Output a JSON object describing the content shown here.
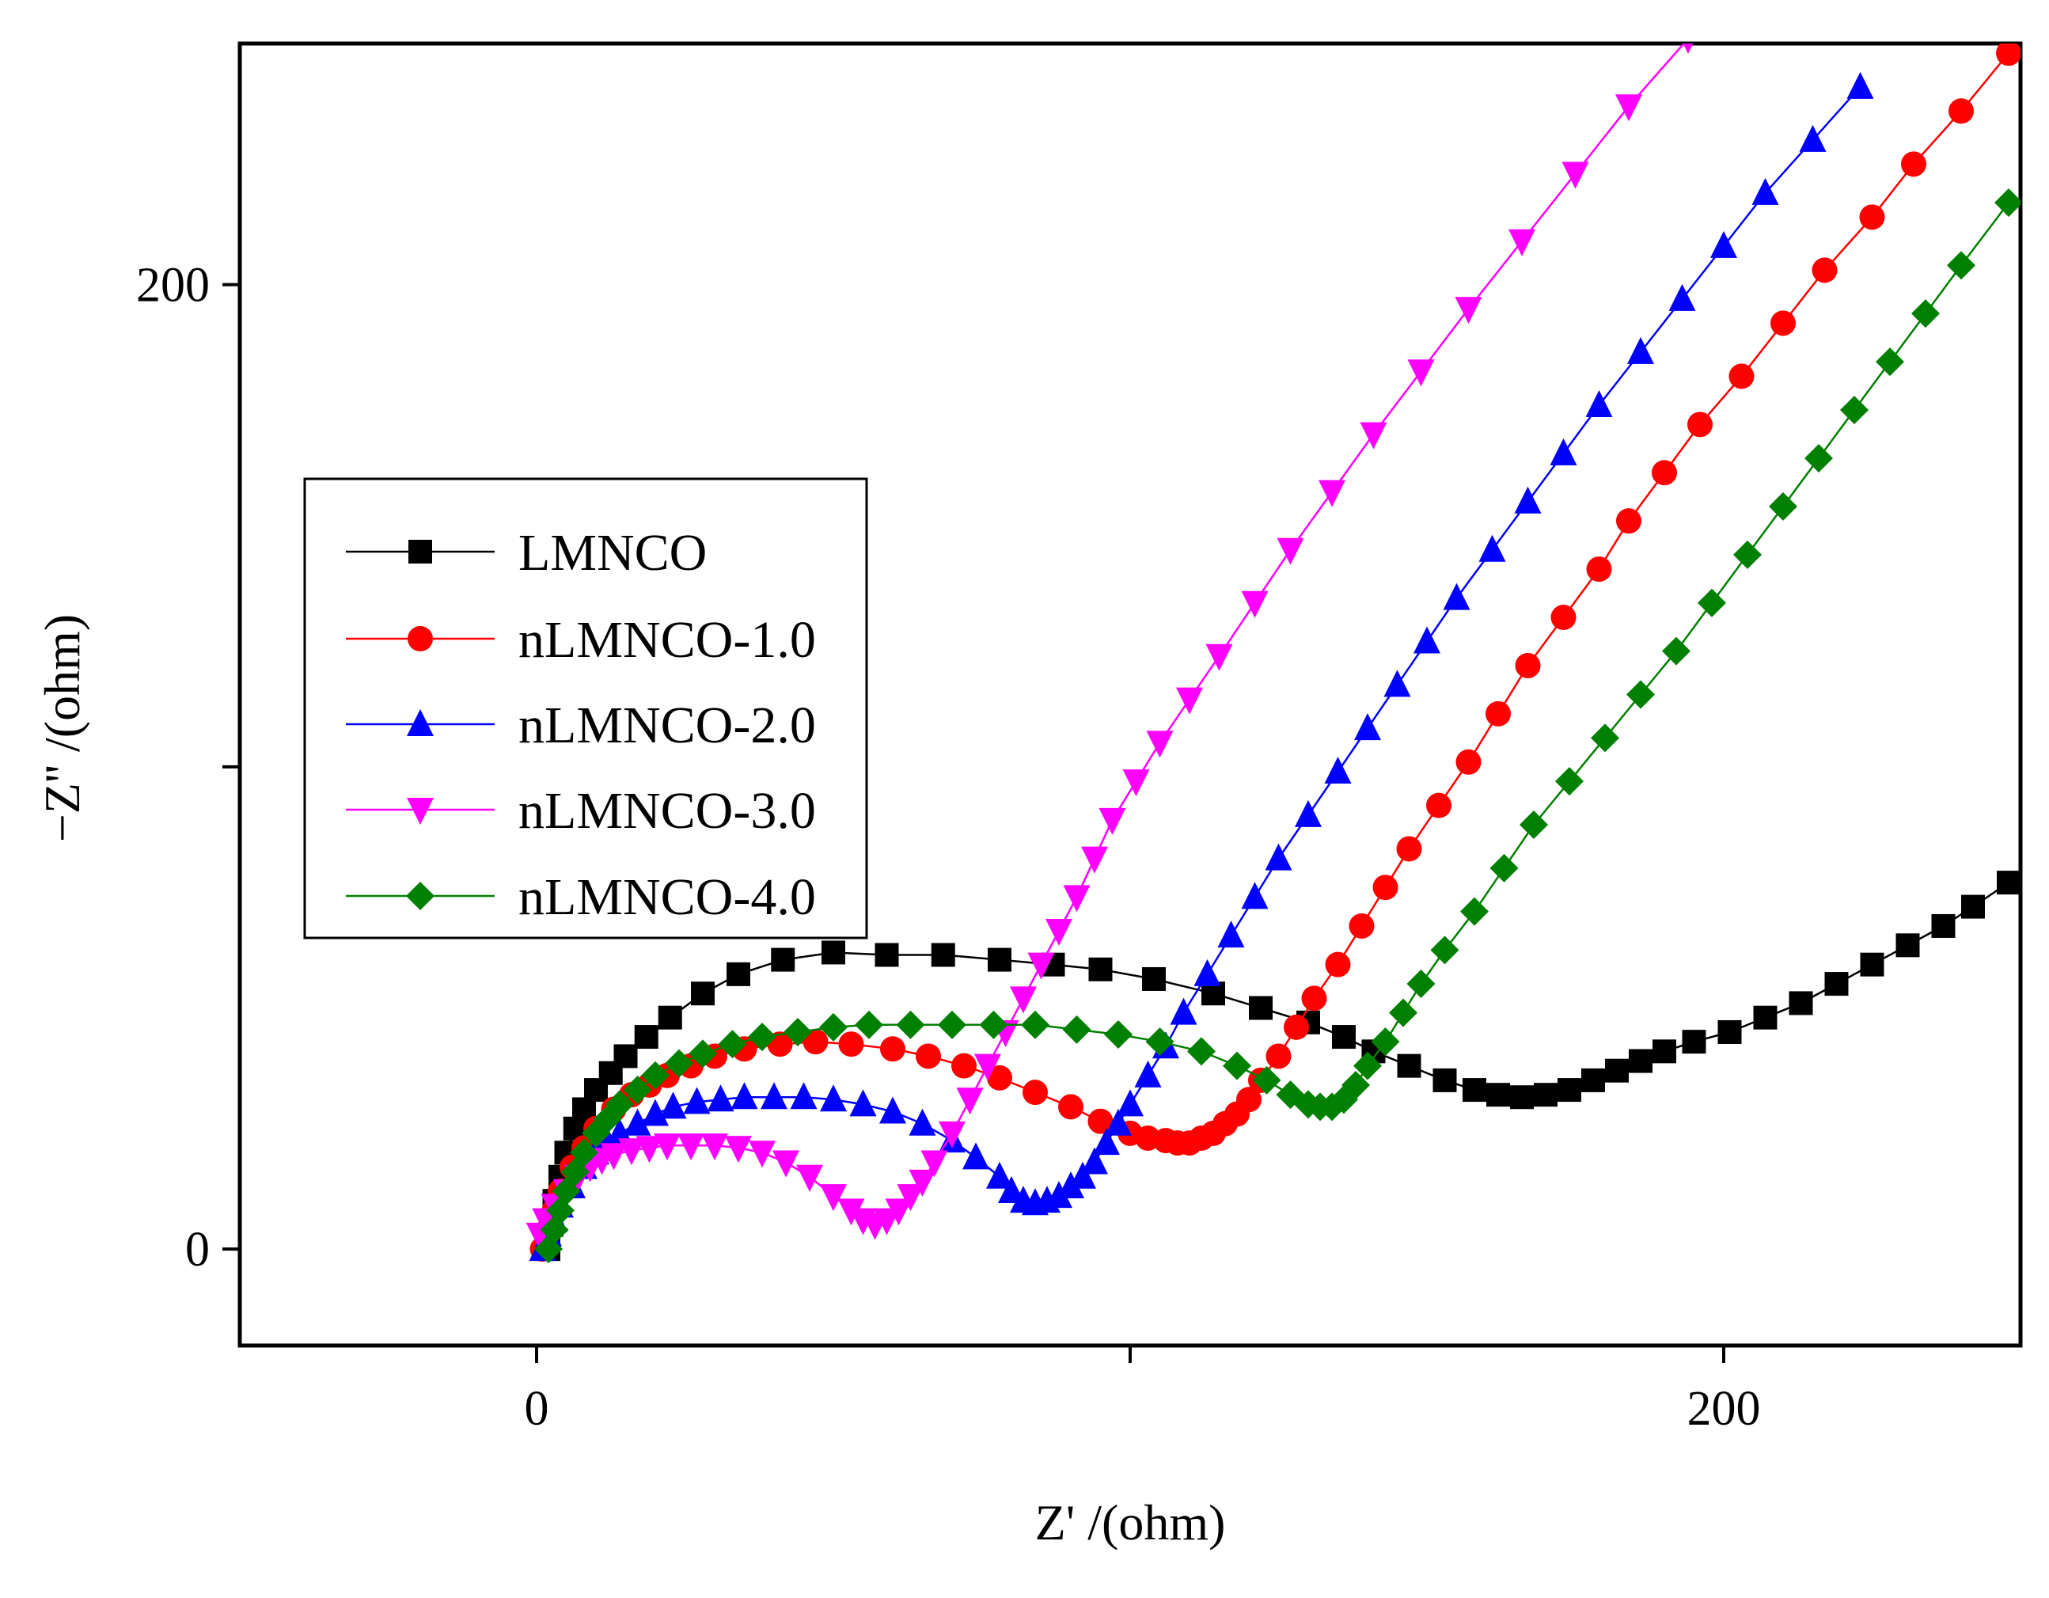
{
  "chart_data": {
    "type": "line",
    "title": "",
    "xlabel": "Z' /(ohm)",
    "ylabel": "−Z'' /(ohm)",
    "xlim": [
      -50,
      250
    ],
    "ylim": [
      -20,
      250
    ],
    "x_ticks": [
      0,
      100,
      200
    ],
    "x_tick_labels": [
      "0",
      "",
      "200"
    ],
    "y_ticks": [
      0,
      100,
      200
    ],
    "y_tick_labels": [
      "0",
      "",
      "200"
    ],
    "legend_position": "left",
    "series": [
      {
        "name": "LMNCO",
        "color": "#000000",
        "marker": "square",
        "x": [
          2,
          2.5,
          3,
          4,
          5,
          6.5,
          8,
          10,
          12.5,
          15,
          18.5,
          22.5,
          28,
          34,
          41.5,
          50,
          59,
          68.5,
          78,
          87,
          95,
          104,
          114,
          122,
          130,
          136,
          141,
          147,
          153,
          158,
          162,
          166,
          170,
          174,
          178,
          182,
          186,
          190,
          195,
          201,
          207,
          213,
          219,
          225,
          231,
          237,
          242,
          248
        ],
        "y": [
          0,
          5,
          10,
          15,
          20,
          25,
          29,
          33,
          36.5,
          40,
          44,
          48,
          53,
          57,
          60,
          61.5,
          61,
          61,
          60,
          59,
          58,
          56,
          53,
          50,
          47,
          44,
          41,
          38,
          35,
          33,
          32,
          31.5,
          32,
          33,
          35,
          37,
          39,
          41,
          43,
          45,
          48,
          51,
          55,
          59,
          63,
          67,
          71,
          76
        ]
      },
      {
        "name": "nLMNCO-1.0",
        "color": "#ff0000",
        "marker": "circle",
        "x": [
          1,
          2,
          3,
          4,
          6,
          8,
          10,
          13,
          16,
          19,
          22,
          26,
          30,
          35,
          41,
          47,
          53,
          60,
          66,
          72,
          78,
          84,
          90,
          95,
          100,
          103,
          106,
          108,
          110,
          112,
          114,
          116,
          118,
          120,
          122,
          125,
          128,
          131,
          135,
          139,
          143,
          147,
          152,
          157,
          162,
          167,
          173,
          179,
          184,
          190,
          196,
          203,
          210,
          217,
          225,
          232,
          240,
          248
        ],
        "y": [
          0,
          4,
          8,
          12,
          17,
          21,
          25,
          29,
          32,
          34,
          36,
          38,
          40,
          41.5,
          42.5,
          43,
          42.5,
          41.5,
          40,
          38,
          35.5,
          32.5,
          29.5,
          26.5,
          24,
          23,
          22.5,
          22,
          22,
          23,
          24,
          26,
          28,
          31,
          35,
          40,
          46,
          52,
          59,
          67,
          75,
          83,
          92,
          101,
          111,
          121,
          131,
          141,
          151,
          161,
          171,
          181,
          192,
          203,
          214,
          225,
          236,
          248
        ]
      },
      {
        "name": "nLMNCO-2.0",
        "color": "#0000ff",
        "marker": "triangle-up",
        "x": [
          1,
          2,
          3,
          4,
          6,
          8,
          10,
          12,
          14,
          17,
          20,
          23,
          27,
          31,
          35,
          40,
          45,
          50,
          55,
          60,
          65,
          70,
          74,
          78,
          80,
          82,
          84,
          86,
          88,
          90,
          92,
          94,
          96,
          98,
          100,
          103,
          106,
          109,
          113,
          117,
          121,
          125,
          130,
          135,
          140,
          145,
          150,
          155,
          161,
          167,
          173,
          179,
          186,
          193,
          200,
          207,
          215,
          223
        ],
        "y": [
          0,
          3,
          6,
          9,
          13,
          17,
          20,
          22,
          24,
          26,
          28,
          29.5,
          30.5,
          31,
          31.5,
          31.5,
          31.5,
          31,
          30,
          28.5,
          26,
          22.5,
          19,
          15,
          12,
          10,
          9.5,
          10,
          11,
          13,
          15,
          18,
          22,
          26,
          30,
          36,
          42,
          49,
          57,
          65,
          73,
          81,
          90,
          99,
          108,
          117,
          126,
          135,
          145,
          155,
          165,
          175,
          186,
          197,
          208,
          219,
          230,
          241
        ]
      },
      {
        "name": "nLMNCO-3.0",
        "color": "#ff00ff",
        "marker": "triangle-down",
        "x": [
          0.5,
          1.5,
          3,
          5,
          7,
          9,
          11,
          13,
          16,
          19,
          22,
          26,
          30,
          34,
          38,
          42,
          46,
          50,
          53,
          55,
          57,
          59,
          61,
          63,
          65,
          67,
          70,
          73,
          76,
          79,
          82,
          85,
          88,
          91,
          94,
          97,
          101,
          105,
          110,
          115,
          121,
          127,
          134,
          141,
          149,
          157,
          166,
          175,
          184,
          194
        ],
        "y": [
          3,
          6,
          9,
          12,
          15,
          17,
          18.5,
          19.5,
          20.5,
          21,
          21.5,
          21.5,
          21.5,
          21,
          20,
          18,
          15,
          11,
          8,
          6,
          5,
          6,
          8,
          11,
          14,
          18,
          24,
          31,
          38,
          45,
          52,
          59,
          66,
          73,
          81,
          89,
          97,
          105,
          114,
          123,
          134,
          145,
          157,
          169,
          182,
          195,
          209,
          223,
          237,
          251
        ]
      },
      {
        "name": "nLMNCO-4.0",
        "color": "#008000",
        "marker": "diamond",
        "x": [
          2,
          3,
          4,
          5,
          6.5,
          8,
          10,
          12,
          14,
          17,
          20,
          24,
          28,
          33,
          38,
          44,
          50,
          56,
          63,
          70,
          77,
          84,
          91,
          98,
          105,
          112,
          118,
          123,
          127,
          130,
          132,
          134,
          136,
          138,
          140,
          143,
          146,
          149,
          153,
          158,
          163,
          168,
          174,
          180,
          186,
          192,
          198,
          204,
          210,
          216,
          222,
          228,
          234,
          240,
          248
        ],
        "y": [
          0,
          4,
          8,
          12,
          16,
          20,
          24,
          27,
          30,
          33,
          36,
          38.5,
          40.5,
          42.5,
          44,
          45,
          46,
          46.5,
          46.5,
          46.5,
          46.5,
          46.5,
          45.5,
          44.5,
          43,
          41,
          38,
          35,
          32,
          30,
          29.5,
          29.5,
          31,
          34,
          38,
          43,
          49,
          55,
          62,
          70,
          79,
          88,
          97,
          106,
          115,
          124,
          134,
          144,
          154,
          164,
          174,
          184,
          194,
          204,
          217
        ]
      }
    ]
  }
}
